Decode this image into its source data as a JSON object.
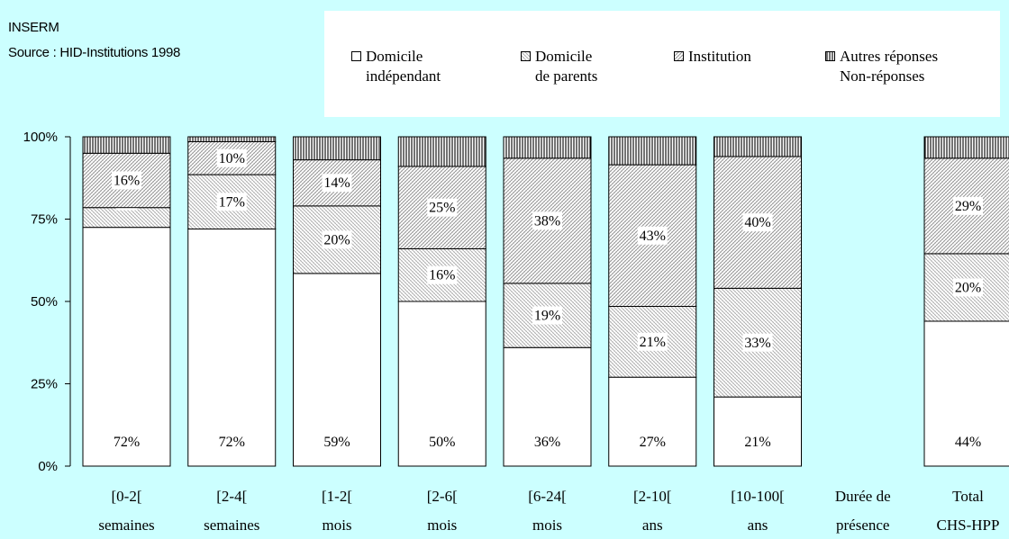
{
  "header": {
    "org": "INSERM",
    "source": "Source : HID-Institutions 1998"
  },
  "legend": [
    {
      "line1": "Domicile",
      "line2": "indépendant",
      "pattern": "white"
    },
    {
      "line1": "Domicile",
      "line2": "de parents",
      "pattern": "dots"
    },
    {
      "line1": "Institution",
      "line2": "",
      "pattern": "hatch"
    },
    {
      "line1": "Autres réponses",
      "line2": "Non-réponses",
      "pattern": "vlines"
    }
  ],
  "chart_data": {
    "type": "bar",
    "stacked": true,
    "title": "",
    "xlabel": "",
    "ylabel": "",
    "ylim": [
      0,
      100
    ],
    "yticks": [
      "0%",
      "25%",
      "50%",
      "75%",
      "100%"
    ],
    "categories": [
      {
        "line1": "[0-2[",
        "line2": "semaines"
      },
      {
        "line1": "[2-4[",
        "line2": "semaines"
      },
      {
        "line1": "[1-2[",
        "line2": "mois"
      },
      {
        "line1": "[2-6[",
        "line2": "mois"
      },
      {
        "line1": "[6-24[",
        "line2": "mois"
      },
      {
        "line1": "[2-10[",
        "line2": "ans"
      },
      {
        "line1": "[10-100[",
        "line2": "ans"
      },
      {
        "line1": "Durée de",
        "line2": "présence"
      },
      {
        "line1": "Total",
        "line2": "CHS-HPP"
      }
    ],
    "series": [
      {
        "name": "Domicile indépendant",
        "pattern": "white",
        "values": [
          72.5,
          72,
          58.5,
          50,
          36,
          27,
          21,
          null,
          44
        ],
        "labels": [
          "72%",
          "72%",
          "59%",
          "50%",
          "36%",
          "27%",
          "21%",
          "",
          "44%"
        ]
      },
      {
        "name": "Domicile de parents",
        "pattern": "dots",
        "values": [
          6,
          16.5,
          20.5,
          16,
          19.5,
          21.5,
          33,
          null,
          20.5
        ],
        "labels": [
          "6%",
          "17%",
          "20%",
          "16%",
          "19%",
          "21%",
          "33%",
          "",
          "20%"
        ]
      },
      {
        "name": "Institution",
        "pattern": "hatch",
        "values": [
          16.5,
          10,
          14,
          25,
          38,
          43,
          40,
          null,
          29
        ],
        "labels": [
          "16%",
          "10%",
          "14%",
          "25%",
          "38%",
          "43%",
          "40%",
          "",
          "29%"
        ]
      },
      {
        "name": "Autres réponses Non-réponses",
        "pattern": "vlines",
        "values": [
          5,
          1.5,
          7,
          9,
          6.5,
          8.5,
          6,
          null,
          6.5
        ],
        "labels": [
          "",
          "",
          "",
          "",
          "",
          "",
          "",
          "",
          ""
        ]
      }
    ]
  }
}
